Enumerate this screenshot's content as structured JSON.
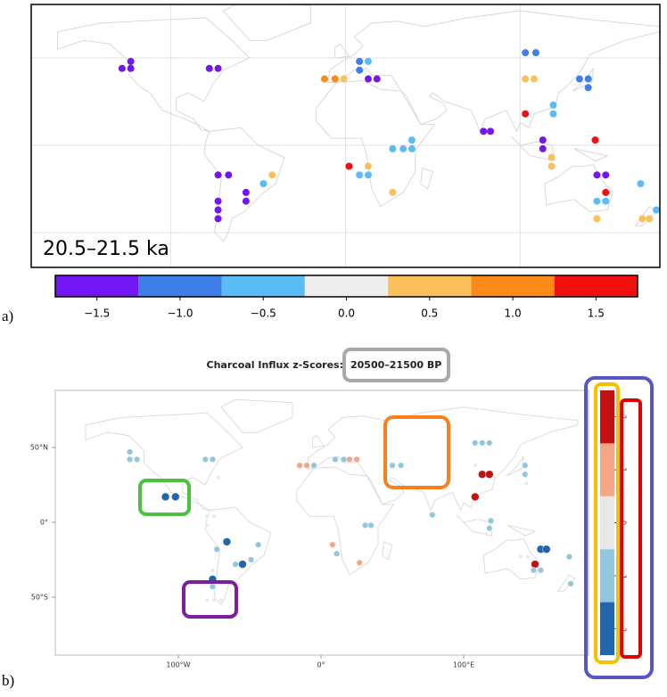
{
  "panel_a": {
    "label": "a)",
    "period": "20.5–21.5 ka",
    "colorbar": {
      "bins": [
        -1.75,
        -1.25,
        -0.75,
        -0.25,
        0.25,
        0.75,
        1.25,
        1.75
      ],
      "colors": [
        "#7316f5",
        "#3f7fe9",
        "#5abcf7",
        "#eeeeee",
        "#fcc05a",
        "#fb8a18",
        "#f40f0f"
      ],
      "ticks": [
        {
          "value": -1.5,
          "label": "−1.5"
        },
        {
          "value": -1.0,
          "label": "−1.0"
        },
        {
          "value": -0.5,
          "label": "−0.5"
        },
        {
          "value": 0,
          "label": "0.0"
        },
        0.5,
        {
          "value": 1.0,
          "label": "1.0"
        },
        1.5
      ]
    },
    "points": [
      {
        "lon": -128,
        "lat": 44,
        "value": -1.5
      },
      {
        "lon": -123,
        "lat": 48,
        "value": -1.5
      },
      {
        "lon": -123,
        "lat": 44,
        "value": -1.5
      },
      {
        "lon": -78,
        "lat": 44,
        "value": -1.5
      },
      {
        "lon": -73,
        "lat": 44,
        "value": -1.5
      },
      {
        "lon": -12,
        "lat": 38,
        "value": 1.0
      },
      {
        "lon": -6,
        "lat": 38,
        "value": 1.0
      },
      {
        "lon": -1,
        "lat": 38,
        "value": 0.5
      },
      {
        "lon": 8,
        "lat": 48,
        "value": -1.0
      },
      {
        "lon": 13,
        "lat": 48,
        "value": -0.5
      },
      {
        "lon": 8,
        "lat": 43,
        "value": -1.0
      },
      {
        "lon": 13,
        "lat": 38,
        "value": -1.5
      },
      {
        "lon": 18,
        "lat": 38,
        "value": -1.5
      },
      {
        "lon": 103,
        "lat": 53,
        "value": -1.0
      },
      {
        "lon": 109,
        "lat": 53,
        "value": -1.0
      },
      {
        "lon": 103,
        "lat": 38,
        "value": 0.5
      },
      {
        "lon": 108,
        "lat": 38,
        "value": 0.5
      },
      {
        "lon": 134,
        "lat": 38,
        "value": -1.0
      },
      {
        "lon": 139,
        "lat": 38,
        "value": -1.0
      },
      {
        "lon": 139,
        "lat": 33,
        "value": -1.0
      },
      {
        "lon": 103,
        "lat": 18,
        "value": 1.5
      },
      {
        "lon": 119,
        "lat": 23,
        "value": -0.5
      },
      {
        "lon": 119,
        "lat": 18,
        "value": -0.5
      },
      {
        "lon": 79,
        "lat": 8,
        "value": -1.5
      },
      {
        "lon": 83,
        "lat": 8,
        "value": -1.5
      },
      {
        "lon": 113,
        "lat": 3,
        "value": -1.5
      },
      {
        "lon": 113,
        "lat": -2,
        "value": -1.5
      },
      {
        "lon": 143,
        "lat": 3,
        "value": 1.5
      },
      {
        "lon": 38,
        "lat": 3,
        "value": -0.5
      },
      {
        "lon": 27,
        "lat": -2,
        "value": -0.5
      },
      {
        "lon": 33,
        "lat": -2,
        "value": -0.5
      },
      {
        "lon": 38,
        "lat": -2,
        "value": -0.5
      },
      {
        "lon": 2,
        "lat": -12,
        "value": 1.5
      },
      {
        "lon": 13,
        "lat": -12,
        "value": 0.5
      },
      {
        "lon": 8,
        "lat": -17,
        "value": -0.5
      },
      {
        "lon": 13,
        "lat": -17,
        "value": -0.5
      },
      {
        "lon": 27,
        "lat": -27,
        "value": 0.5
      },
      {
        "lon": 118,
        "lat": -7,
        "value": 0.5
      },
      {
        "lon": 118,
        "lat": -12,
        "value": 0.5
      },
      {
        "lon": -73,
        "lat": -17,
        "value": -1.5
      },
      {
        "lon": -67,
        "lat": -17,
        "value": -1.5
      },
      {
        "lon": -42,
        "lat": -17,
        "value": 0.5
      },
      {
        "lon": -47,
        "lat": -22,
        "value": -0.5
      },
      {
        "lon": -57,
        "lat": -27,
        "value": -1.5
      },
      {
        "lon": -57,
        "lat": -32,
        "value": -1.5
      },
      {
        "lon": -73,
        "lat": -32,
        "value": -1.5
      },
      {
        "lon": -73,
        "lat": -37,
        "value": -1.5
      },
      {
        "lon": -73,
        "lat": -42,
        "value": -1.5
      },
      {
        "lon": 144,
        "lat": -17,
        "value": -1.5
      },
      {
        "lon": 149,
        "lat": -17,
        "value": -1.5
      },
      {
        "lon": 149,
        "lat": -27,
        "value": 1.5
      },
      {
        "lon": 169,
        "lat": -22,
        "value": -0.5
      },
      {
        "lon": 144,
        "lat": -32,
        "value": -0.5
      },
      {
        "lon": 149,
        "lat": -32,
        "value": -0.5
      },
      {
        "lon": 170,
        "lat": -42,
        "value": 0.5
      },
      {
        "lon": 174,
        "lat": -42,
        "value": 0.5
      },
      {
        "lon": 178,
        "lat": -37,
        "value": -0.5
      },
      {
        "lon": 144,
        "lat": -42,
        "value": 0.5
      }
    ]
  },
  "panel_b": {
    "label": "b)",
    "title": "Charcoal Influx z-Scores:",
    "period": "20500–21500 BP",
    "xticks": [
      {
        "value": -100,
        "label": "100°W"
      },
      {
        "value": 0,
        "label": "0°"
      },
      {
        "value": 100,
        "label": "100°E"
      }
    ],
    "yticks": [
      {
        "value": 50,
        "label": "50°N"
      },
      {
        "value": 0,
        "label": "0°"
      },
      {
        "value": -50,
        "label": "50°S"
      }
    ],
    "colorbar": {
      "bins": [
        -2.5,
        -1.5,
        -0.5,
        0.5,
        1.5,
        2.5
      ],
      "colors": [
        "#2166ac",
        "#92c5de",
        "#e8e8e8",
        "#f4a582",
        "#c41212"
      ],
      "ticks": [
        2,
        1,
        0,
        -1,
        -2
      ]
    },
    "points": [
      {
        "lon": -134,
        "lat": 47,
        "value": -1
      },
      {
        "lon": -129,
        "lat": 42,
        "value": -1
      },
      {
        "lon": -134,
        "lat": 42,
        "value": -1
      },
      {
        "lon": -81,
        "lat": 42,
        "value": -1
      },
      {
        "lon": -76,
        "lat": 42,
        "value": -1
      },
      {
        "lon": -109,
        "lat": 17,
        "value": -2
      },
      {
        "lon": -102,
        "lat": 17,
        "value": -2
      },
      {
        "lon": -72,
        "lat": 30,
        "value": 0
      },
      {
        "lon": -80,
        "lat": 4,
        "value": 0
      },
      {
        "lon": -75,
        "lat": 4,
        "value": 0
      },
      {
        "lon": -80,
        "lat": -2,
        "value": 0
      },
      {
        "lon": -73,
        "lat": -18,
        "value": -1
      },
      {
        "lon": -66,
        "lat": -13,
        "value": -2
      },
      {
        "lon": -55,
        "lat": -28,
        "value": -2
      },
      {
        "lon": -60,
        "lat": -28,
        "value": -1
      },
      {
        "lon": -49,
        "lat": -25,
        "value": -1
      },
      {
        "lon": -44,
        "lat": -15,
        "value": -1
      },
      {
        "lon": -76,
        "lat": -38,
        "value": -2
      },
      {
        "lon": -76,
        "lat": -43,
        "value": -1
      },
      {
        "lon": -76,
        "lat": -32,
        "value": 0
      },
      {
        "lon": -80,
        "lat": -52,
        "value": 0
      },
      {
        "lon": -75,
        "lat": -52,
        "value": 0
      },
      {
        "lon": -70,
        "lat": -52,
        "value": 0
      },
      {
        "lon": -15,
        "lat": 38,
        "value": 1
      },
      {
        "lon": -10,
        "lat": 38,
        "value": 1
      },
      {
        "lon": -5,
        "lat": 38,
        "value": -1
      },
      {
        "lon": 10,
        "lat": 42,
        "value": -1
      },
      {
        "lon": 16,
        "lat": 42,
        "value": -1
      },
      {
        "lon": 20,
        "lat": 42,
        "value": 1
      },
      {
        "lon": 25,
        "lat": 42,
        "value": 1
      },
      {
        "lon": 50,
        "lat": 38,
        "value": -1
      },
      {
        "lon": 56,
        "lat": 38,
        "value": -1
      },
      {
        "lon": 108,
        "lat": 53,
        "value": -1
      },
      {
        "lon": 113,
        "lat": 53,
        "value": -1
      },
      {
        "lon": 118,
        "lat": 53,
        "value": -1
      },
      {
        "lon": 108,
        "lat": 38,
        "value": 0
      },
      {
        "lon": 113,
        "lat": 32,
        "value": 2
      },
      {
        "lon": 118,
        "lat": 32,
        "value": 2
      },
      {
        "lon": 108,
        "lat": 17,
        "value": 2
      },
      {
        "lon": 143,
        "lat": 38,
        "value": -1
      },
      {
        "lon": 143,
        "lat": 32,
        "value": -1
      },
      {
        "lon": 144,
        "lat": 26,
        "value": 0
      },
      {
        "lon": 78,
        "lat": 5,
        "value": -1
      },
      {
        "lon": 119,
        "lat": 1,
        "value": -1
      },
      {
        "lon": 118,
        "lat": -4,
        "value": -1
      },
      {
        "lon": 116,
        "lat": -8,
        "value": 0
      },
      {
        "lon": 154,
        "lat": -18,
        "value": -2
      },
      {
        "lon": 158,
        "lat": -18,
        "value": -2
      },
      {
        "lon": 150,
        "lat": -28,
        "value": 2
      },
      {
        "lon": 149,
        "lat": -32,
        "value": -1
      },
      {
        "lon": 154,
        "lat": -32,
        "value": -1
      },
      {
        "lon": 174,
        "lat": -23,
        "value": -1
      },
      {
        "lon": 175,
        "lat": -41,
        "value": -1
      },
      {
        "lon": 140,
        "lat": -23,
        "value": 0
      },
      {
        "lon": 145,
        "lat": -23,
        "value": 0
      },
      {
        "lon": 8,
        "lat": -15,
        "value": 1
      },
      {
        "lon": 27,
        "lat": -27,
        "value": 1
      },
      {
        "lon": 35,
        "lat": -2,
        "value": -1
      },
      {
        "lon": 31,
        "lat": -2,
        "value": -1
      },
      {
        "lon": 11,
        "lat": -21,
        "value": -1
      }
    ]
  }
}
